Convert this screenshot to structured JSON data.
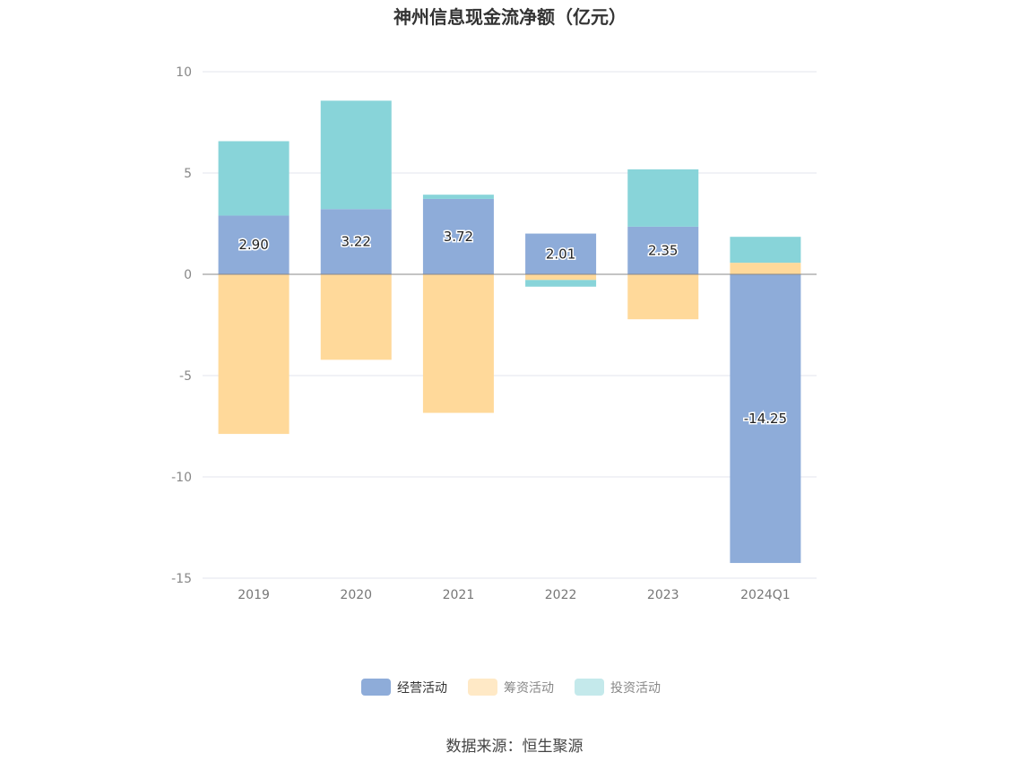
{
  "chart_data": {
    "type": "bar",
    "stacked": true,
    "title": "神州信息现金流净额（亿元）",
    "categories": [
      "2019",
      "2020",
      "2021",
      "2022",
      "2023",
      "2024Q1"
    ],
    "series": [
      {
        "name": "经营活动",
        "color": "#8eacd9",
        "values": [
          2.9,
          3.22,
          3.72,
          2.01,
          2.35,
          -14.25
        ]
      },
      {
        "name": "筹资活动",
        "color": "#ffd99a",
        "values": [
          -7.88,
          -4.22,
          -6.84,
          -0.28,
          -2.22,
          0.57
        ]
      },
      {
        "name": "投资活动",
        "color": "#88d4d9",
        "values": [
          3.67,
          5.35,
          0.21,
          -0.33,
          2.83,
          1.28
        ]
      }
    ],
    "data_labels": [
      "2.90",
      "3.22",
      "3.72",
      "2.01",
      "2.35",
      "-14.25"
    ],
    "yticks": [
      "10",
      "5",
      "0",
      "-5",
      "-10",
      "-15"
    ],
    "ylim": [
      -15,
      10
    ],
    "grid": true,
    "legend_position": "bottom-center",
    "legend_colors": [
      "#8eacd9",
      "#ffe9c6",
      "#c4e9eb"
    ]
  },
  "source": "数据来源：恒生聚源"
}
